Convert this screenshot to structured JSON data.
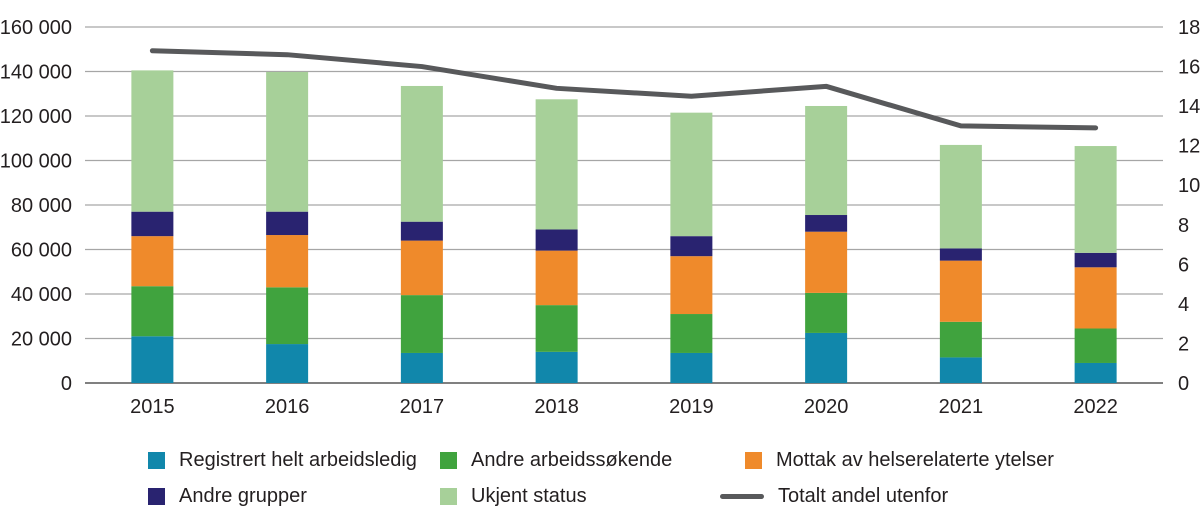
{
  "chart_data": {
    "type": "bar",
    "subtype": "stacked-bars-with-line",
    "categories": [
      "2015",
      "2016",
      "2017",
      "2018",
      "2019",
      "2020",
      "2021",
      "2022"
    ],
    "series": [
      {
        "name": "Registrert helt arbeidsledig",
        "type": "bar",
        "color": "#1187ab",
        "values": [
          21000,
          17500,
          13500,
          14000,
          13500,
          22500,
          11500,
          9000
        ]
      },
      {
        "name": "Andre arbeidssøkende",
        "type": "bar",
        "color": "#40a33e",
        "values": [
          22500,
          25500,
          26000,
          21000,
          17500,
          18000,
          16000,
          15500
        ]
      },
      {
        "name": "Mottak av helserelaterte ytelser",
        "type": "bar",
        "color": "#ef8a2b",
        "values": [
          22500,
          23500,
          24500,
          24500,
          26000,
          27500,
          27500,
          27500
        ]
      },
      {
        "name": "Andre grupper",
        "type": "bar",
        "color": "#292370",
        "values": [
          11000,
          10500,
          8500,
          9500,
          9000,
          7500,
          5500,
          6500
        ]
      },
      {
        "name": "Ukjent status",
        "type": "bar",
        "color": "#a7d099",
        "values": [
          63500,
          62800,
          61000,
          58500,
          55500,
          49000,
          46500,
          48000
        ]
      },
      {
        "name": "Totalt andel utenfor",
        "type": "line",
        "axis": "right",
        "color": "#58595b",
        "values": [
          16.8,
          16.6,
          16.0,
          14.9,
          14.5,
          15.0,
          13.0,
          12.9
        ]
      }
    ],
    "bar_totals": [
      140500,
      139800,
      133500,
      127500,
      121500,
      124500,
      107000,
      106500
    ],
    "title": "",
    "xlabel": "",
    "ylabel": "",
    "left_axis": {
      "min": 0,
      "max": 160000,
      "step": 20000,
      "tick_labels": [
        "0",
        "20 000",
        "40 000",
        "60 000",
        "80 000",
        "100 000",
        "120 000",
        "140 000",
        "160 000"
      ]
    },
    "right_axis": {
      "min": 0,
      "max": 18,
      "step": 2,
      "tick_labels": [
        "0",
        "2",
        "4",
        "6",
        "8",
        "10",
        "12",
        "14",
        "16",
        "18"
      ]
    },
    "grid": true,
    "legend_position": "bottom"
  },
  "colors": {
    "gridline": "#a6a6a6",
    "baseline": "#808080",
    "text": "#231f20",
    "background": "#ffffff"
  }
}
